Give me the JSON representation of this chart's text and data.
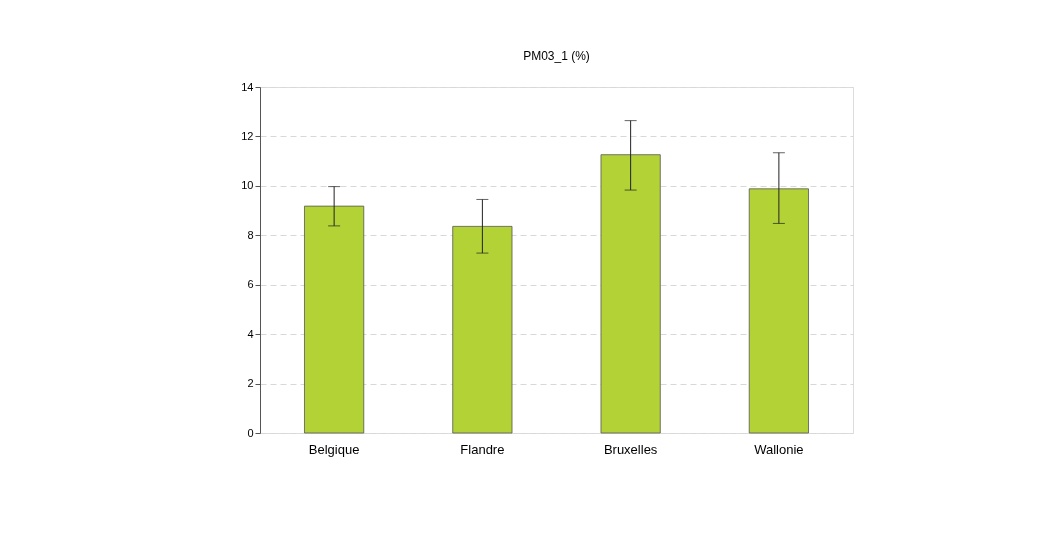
{
  "chart_data": {
    "type": "bar",
    "title": "PM03_1 (%)",
    "categories": [
      "Belgique",
      "Flandre",
      "Bruxelles",
      "Wallonie"
    ],
    "values": [
      9.18,
      8.36,
      11.26,
      9.88
    ],
    "errors": [
      [
        8.38,
        9.97
      ],
      [
        7.28,
        9.45
      ],
      [
        9.83,
        12.64
      ],
      [
        8.48,
        11.34
      ]
    ],
    "color": "#b2d235",
    "ylim": [
      0,
      14
    ],
    "yticks": [
      0,
      2,
      4,
      6,
      8,
      10,
      12,
      14
    ],
    "grid": "y"
  }
}
